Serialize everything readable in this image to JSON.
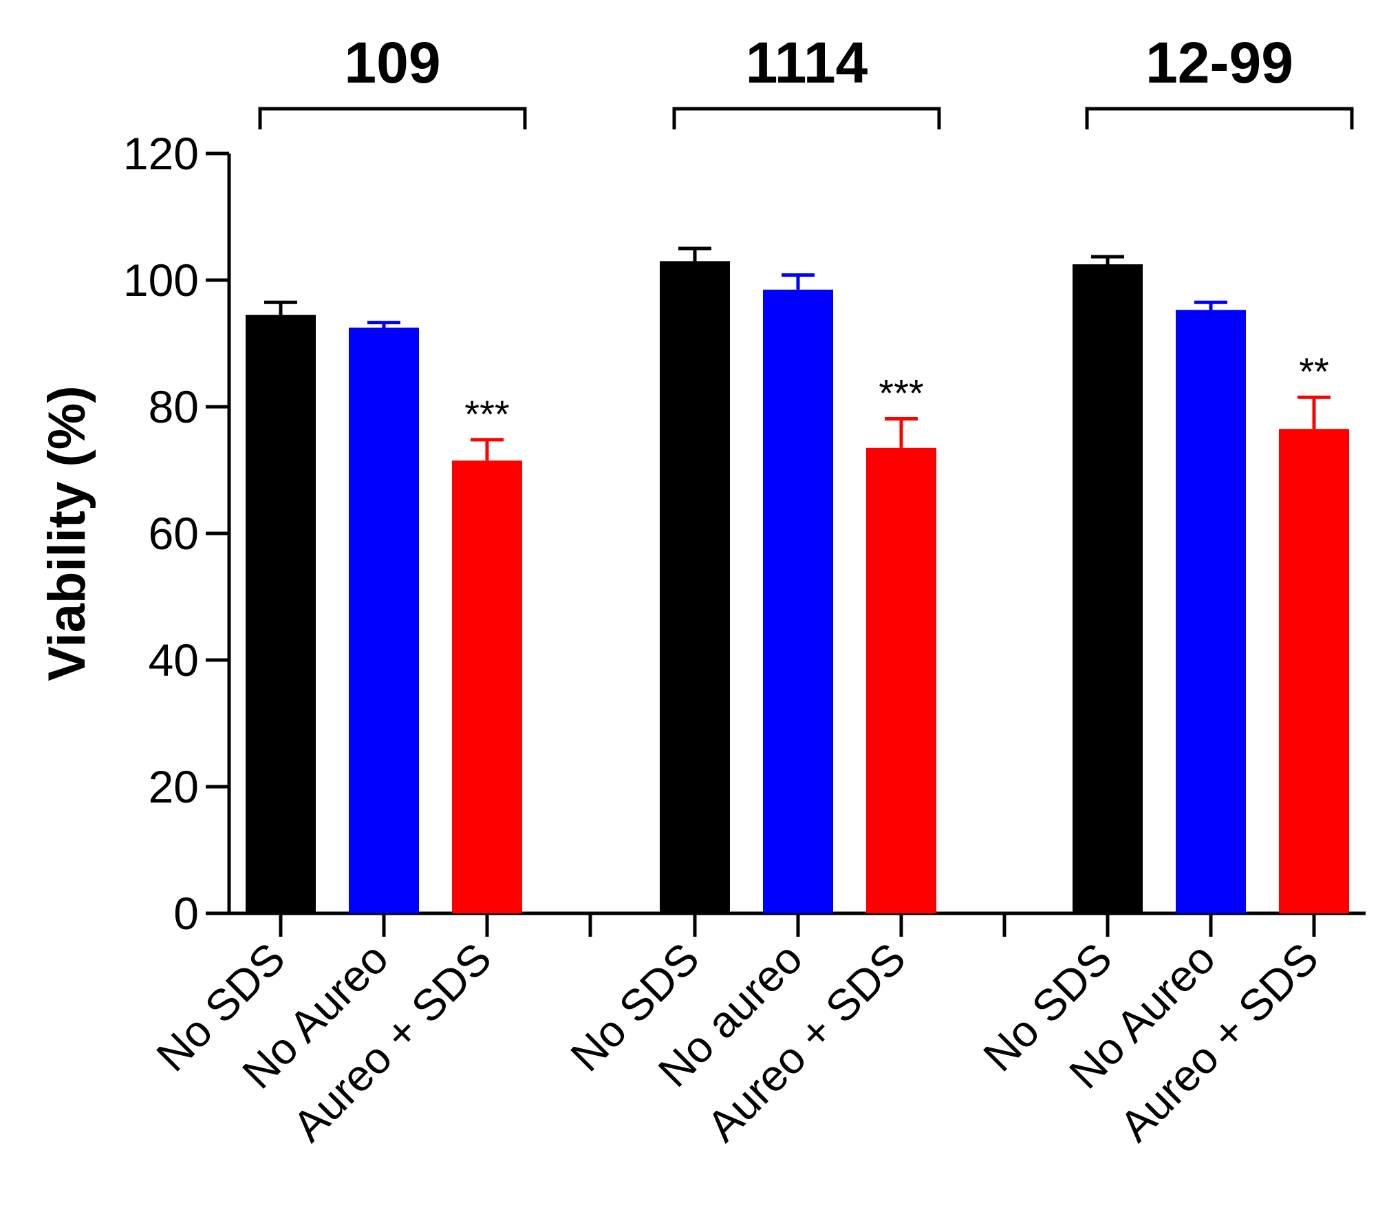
{
  "chart_data": {
    "type": "bar",
    "title": "",
    "xlabel": "",
    "ylabel": "Viability (%)",
    "ylim": [
      0,
      120
    ],
    "yticks": [
      0,
      20,
      40,
      60,
      80,
      100,
      120
    ],
    "grid": false,
    "series_colors": [
      "#000000",
      "#0000ff",
      "#ff0000"
    ],
    "groups": [
      {
        "name": "109",
        "bars": [
          {
            "label": "No SDS",
            "value": 94.5,
            "error": 2.0,
            "color": "#000000",
            "significance": ""
          },
          {
            "label": "No Aureo",
            "value": 92.5,
            "error": 0.8,
            "color": "#0000ff",
            "significance": ""
          },
          {
            "label": "Aureo + SDS",
            "value": 71.5,
            "error": 3.3,
            "color": "#ff0000",
            "significance": "***"
          }
        ]
      },
      {
        "name": "1114",
        "bars": [
          {
            "label": "No SDS",
            "value": 103.0,
            "error": 2.0,
            "color": "#000000",
            "significance": ""
          },
          {
            "label": "No aureo",
            "value": 98.5,
            "error": 2.3,
            "color": "#0000ff",
            "significance": ""
          },
          {
            "label": "Aureo + SDS",
            "value": 73.5,
            "error": 4.6,
            "color": "#ff0000",
            "significance": "***"
          }
        ]
      },
      {
        "name": "12-99",
        "bars": [
          {
            "label": "No SDS",
            "value": 102.5,
            "error": 1.2,
            "color": "#000000",
            "significance": ""
          },
          {
            "label": "No Aureo",
            "value": 95.3,
            "error": 1.2,
            "color": "#0000ff",
            "significance": ""
          },
          {
            "label": "Aureo + SDS",
            "value": 76.5,
            "error": 5.0,
            "color": "#ff0000",
            "significance": "**"
          }
        ]
      }
    ]
  }
}
